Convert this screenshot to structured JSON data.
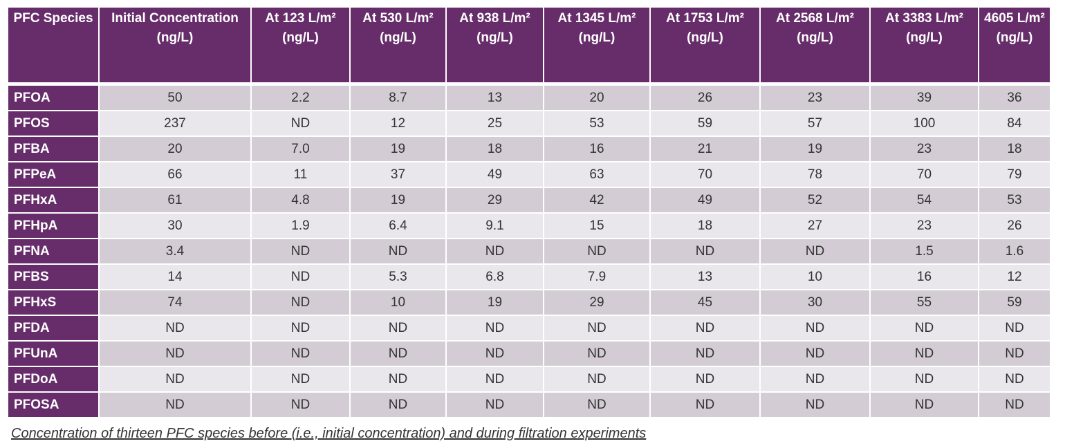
{
  "table": {
    "headers": [
      "PFC Species",
      "Initial Concentration (ng/L)",
      "At 123 L/m² (ng/L)",
      "At 530 L/m² (ng/L)",
      "At 938 L/m² (ng/L)",
      "At 1345 L/m² (ng/L)",
      "At 1753 L/m² (ng/L)",
      "At 2568 L/m² (ng/L)",
      "At 3383 L/m² (ng/L)",
      "4605 L/m² (ng/L)"
    ],
    "rows": [
      [
        "PFOA",
        "50",
        "2.2",
        "8.7",
        "13",
        "20",
        "26",
        "23",
        "39",
        "36"
      ],
      [
        "PFOS",
        "237",
        "ND",
        "12",
        "25",
        "53",
        "59",
        "57",
        "100",
        "84"
      ],
      [
        "PFBA",
        "20",
        "7.0",
        "19",
        "18",
        "16",
        "21",
        "19",
        "23",
        "18"
      ],
      [
        "PFPeA",
        "66",
        "11",
        "37",
        "49",
        "63",
        "70",
        "78",
        "70",
        "79"
      ],
      [
        "PFHxA",
        "61",
        "4.8",
        "19",
        "29",
        "42",
        "49",
        "52",
        "54",
        "53"
      ],
      [
        "PFHpA",
        "30",
        "1.9",
        "6.4",
        "9.1",
        "15",
        "18",
        "27",
        "23",
        "26"
      ],
      [
        "PFNA",
        "3.4",
        "ND",
        "ND",
        "ND",
        "ND",
        "ND",
        "ND",
        "1.5",
        "1.6"
      ],
      [
        "PFBS",
        "14",
        "ND",
        "5.3",
        "6.8",
        "7.9",
        "13",
        "10",
        "16",
        "12"
      ],
      [
        "PFHxS",
        "74",
        "ND",
        "10",
        "19",
        "29",
        "45",
        "30",
        "55",
        "59"
      ],
      [
        "PFDA",
        "ND",
        "ND",
        "ND",
        "ND",
        "ND",
        "ND",
        "ND",
        "ND",
        "ND"
      ],
      [
        "PFUnA",
        "ND",
        "ND",
        "ND",
        "ND",
        "ND",
        "ND",
        "ND",
        "ND",
        "ND"
      ],
      [
        "PFDoA",
        "ND",
        "ND",
        "ND",
        "ND",
        "ND",
        "ND",
        "ND",
        "ND",
        "ND"
      ],
      [
        "PFOSA",
        "ND",
        "ND",
        "ND",
        "ND",
        "ND",
        "ND",
        "ND",
        "ND",
        "ND"
      ]
    ]
  },
  "caption": "Concentration of thirteen PFC species before (i.e., initial concentration) and during filtration experiments",
  "colors": {
    "header": "#672d6b",
    "row_odd": "#d4ccd5",
    "row_even": "#e9e7eb"
  }
}
